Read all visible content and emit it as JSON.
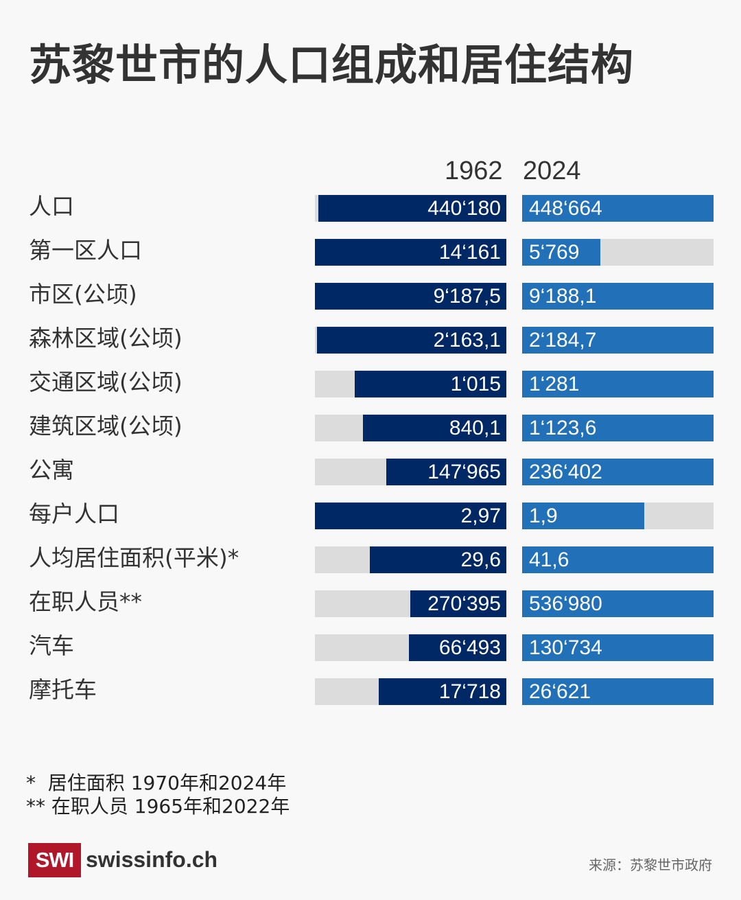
{
  "title": "苏黎世市的人口组成和居住结构",
  "chart_data": {
    "type": "bar",
    "title": "苏黎世市的人口组成和居住结构",
    "series_names": [
      "1962",
      "2024"
    ],
    "series_colors": [
      "#002864",
      "#2170b8"
    ],
    "track_color": "#dcdcdc",
    "rows": [
      {
        "label": "人口",
        "v1962": 440180,
        "v2024": 448664,
        "t1962": "440‘180",
        "t2024": "448‘664"
      },
      {
        "label": "第一区人口",
        "v1962": 14161,
        "v2024": 5769,
        "t1962": "14‘161",
        "t2024": "5‘769"
      },
      {
        "label": "市区(公顷)",
        "v1962": 9187.5,
        "v2024": 9188.1,
        "t1962": "9‘187,5",
        "t2024": "9‘188,1"
      },
      {
        "label": "森林区域(公顷)",
        "v1962": 2163.1,
        "v2024": 2184.7,
        "t1962": "2‘163,1",
        "t2024": "2‘184,7"
      },
      {
        "label": "交通区域(公顷)",
        "v1962": 1015,
        "v2024": 1281,
        "t1962": "1‘015",
        "t2024": "1‘281"
      },
      {
        "label": "建筑区域(公顷)",
        "v1962": 840.1,
        "v2024": 1123.6,
        "t1962": "840,1",
        "t2024": "1‘123,6"
      },
      {
        "label": "公寓",
        "v1962": 147965,
        "v2024": 236402,
        "t1962": "147‘965",
        "t2024": "236‘402"
      },
      {
        "label": "每户人口",
        "v1962": 2.97,
        "v2024": 1.9,
        "t1962": "2,97",
        "t2024": "1,9"
      },
      {
        "label": "人均居住面积(平米)*",
        "v1962": 29.6,
        "v2024": 41.6,
        "t1962": "29,6",
        "t2024": "41,6"
      },
      {
        "label": "在职人员**",
        "v1962": 270395,
        "v2024": 536980,
        "t1962": "270‘395",
        "t2024": "536‘980"
      },
      {
        "label": "汽车",
        "v1962": 66493,
        "v2024": 130734,
        "t1962": "66‘493",
        "t2024": "130‘734"
      },
      {
        "label": "摩托车",
        "v1962": 17718,
        "v2024": 26621,
        "t1962": "17‘718",
        "t2024": "26‘621"
      }
    ]
  },
  "notes": [
    "*  居住面积 1970年和2024年",
    "** 在职人员 1965年和2022年"
  ],
  "logo": {
    "mark": "SWI",
    "name": "swissinfo.ch"
  },
  "source": "来源：苏黎世市政府"
}
